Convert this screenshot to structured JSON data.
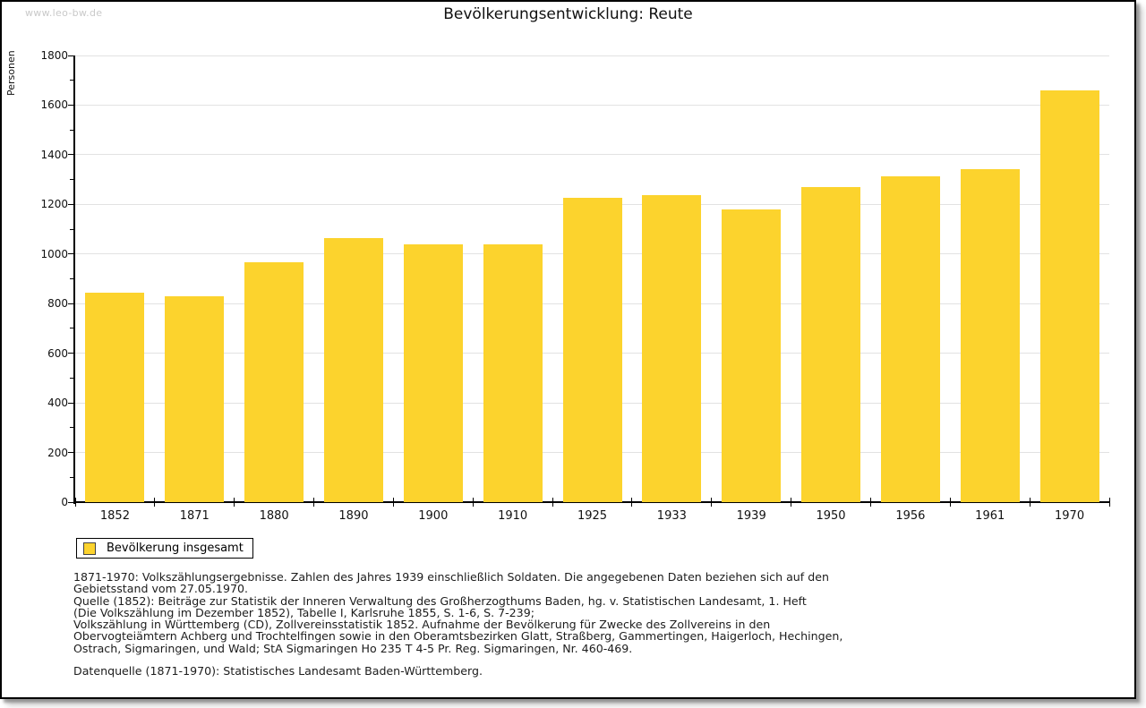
{
  "watermark": "www.leo-bw.de",
  "title": "Bevölkerungsentwicklung: Reute",
  "chart_data": {
    "type": "bar",
    "title": "Bevölkerungsentwicklung: Reute",
    "xlabel": "",
    "ylabel": "Personen",
    "categories": [
      "1852",
      "1871",
      "1880",
      "1890",
      "1900",
      "1910",
      "1925",
      "1933",
      "1939",
      "1950",
      "1956",
      "1961",
      "1970"
    ],
    "values": [
      845,
      831,
      967,
      1063,
      1038,
      1038,
      1227,
      1236,
      1181,
      1269,
      1313,
      1343,
      1659
    ],
    "series_name": "Bevölkerung insgesamt",
    "ylim": [
      0,
      1800
    ],
    "ytick_step": 200,
    "yminor_step": 100,
    "grid": true,
    "bar_color": "#fcd32d",
    "legend_position": "bottom-left"
  },
  "legend": {
    "label": "Bevölkerung insgesamt",
    "swatch_color": "#fcd32d"
  },
  "footnotes": {
    "lines": [
      "1871-1970: Volkszählungsergebnisse. Zahlen des Jahres 1939 einschließlich Soldaten. Die angegebenen Daten beziehen sich auf den",
      "Gebietsstand vom 27.05.1970.",
      "Quelle (1852): Beiträge zur Statistik der Inneren Verwaltung des Großherzogthums Baden, hg. v. Statistischen Landesamt, 1. Heft",
      "(Die Volkszählung im Dezember 1852), Tabelle I, Karlsruhe 1855, S. 1-6, S. 7-239;",
      "Volkszählung in Württemberg (CD), Zollvereinsstatistik 1852. Aufnahme der Bevölkerung für Zwecke des Zollvereins in den",
      "Obervogteiämtern Achberg und Trochtelfingen sowie in den Oberamtsbezirken Glatt, Straßberg, Gammertingen, Haigerloch, Hechingen,",
      "Ostrach, Sigmaringen, und Wald; StA Sigmaringen Ho 235 T 4-5 Pr. Reg. Sigmaringen, Nr. 460-469."
    ],
    "datasource": "Datenquelle (1871-1970): Statistisches Landesamt Baden-Württemberg."
  },
  "colors": {
    "bar": "#fcd32d",
    "gridline": "#e2e2e2",
    "axis": "#000000",
    "watermark": "#c9c9c9",
    "background": "#ffffff"
  }
}
